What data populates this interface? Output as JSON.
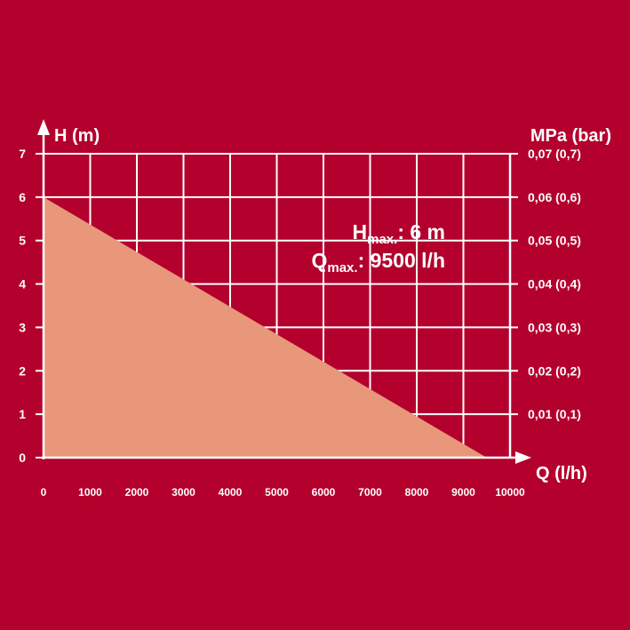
{
  "chart_data": {
    "type": "area",
    "x": [
      0,
      9500
    ],
    "y": [
      6,
      0
    ],
    "x_ticks": [
      "0",
      "1000",
      "2000",
      "3000",
      "4000",
      "5000",
      "6000",
      "7000",
      "8000",
      "9000",
      "10000"
    ],
    "y_ticks": [
      "0",
      "1",
      "2",
      "3",
      "4",
      "5",
      "6",
      "7"
    ],
    "y2_ticks": [
      "0,01 (0,1)",
      "0,02 (0,2)",
      "0,03 (0,3)",
      "0,04 (0,4)",
      "0,05 (0,5)",
      "0,06 (0,6)",
      "0,07 (0,7)"
    ],
    "xlabel": "Q (l/h)",
    "ylabel": "H (m)",
    "y2label": "MPa (bar)",
    "xlim": [
      0,
      10000
    ],
    "ylim": [
      0,
      7
    ],
    "grid": true,
    "annotations": {
      "hmax": {
        "main": "H",
        "sub": "max.",
        "value": ": 6 m"
      },
      "qmax": {
        "main": "Q",
        "sub": "max.",
        "value": ": 9500 l/h"
      }
    }
  },
  "colors": {
    "background": "#b3002d",
    "fill": "#e8977a",
    "axis": "#ffffff",
    "grid": "#ffffff"
  }
}
